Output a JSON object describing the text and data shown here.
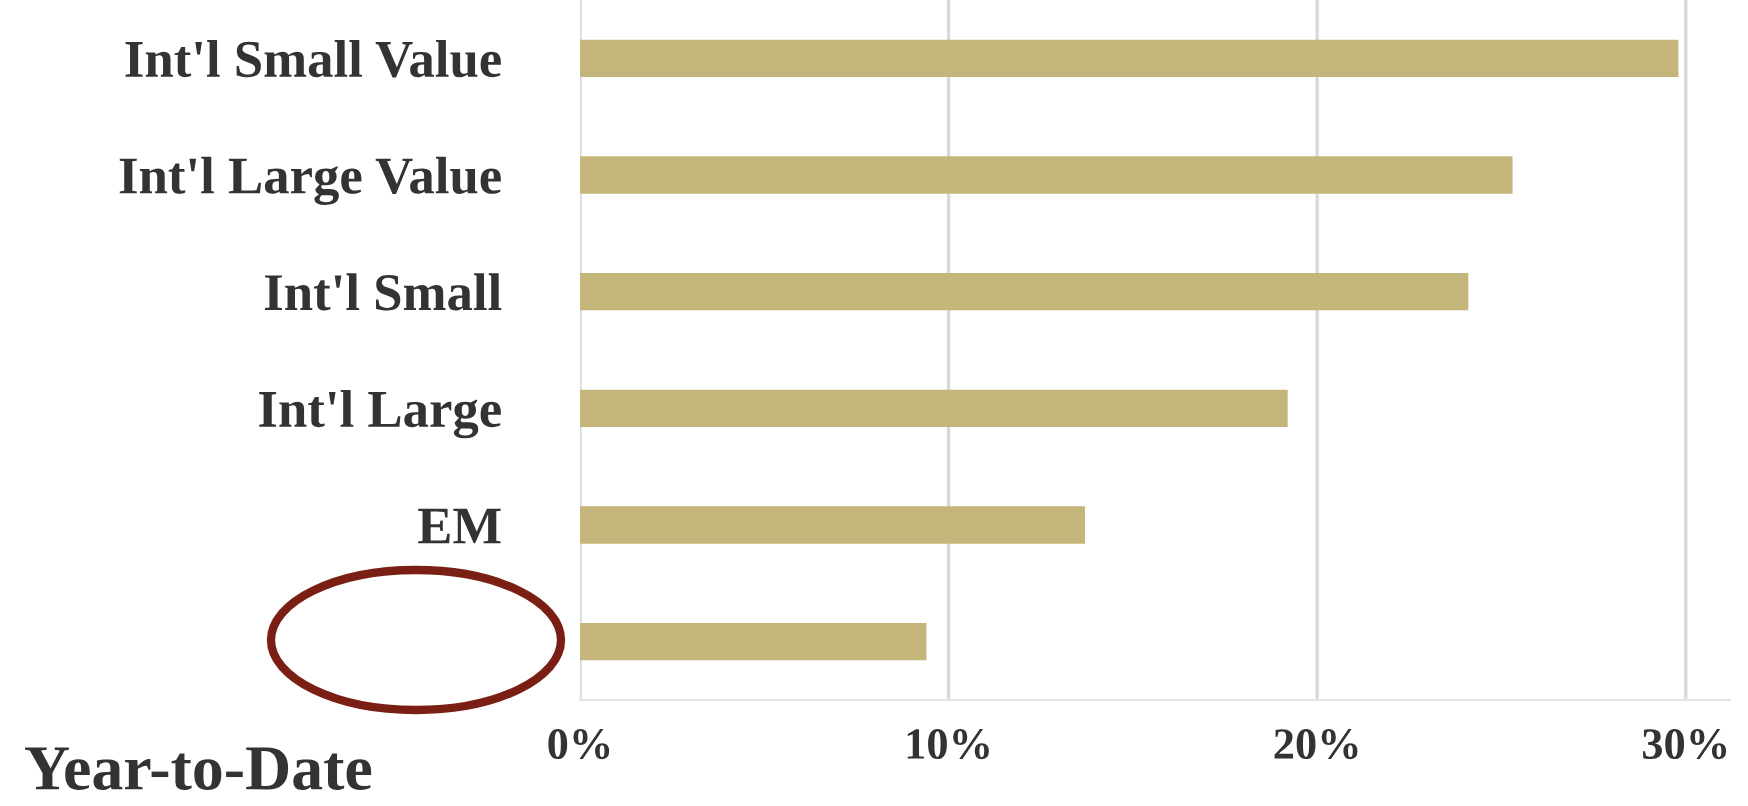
{
  "chart_data": {
    "type": "bar",
    "orientation": "horizontal",
    "categories": [
      "Int'l Small Value",
      "Int'l Large Value",
      "Int'l Small",
      "Int'l Large",
      "EM",
      null
    ],
    "values": [
      29.8,
      25.3,
      24.1,
      19.2,
      13.7,
      9.4
    ],
    "color": "#c4b67a",
    "xlim": [
      0,
      31.2
    ],
    "xticks": [
      {
        "value": 0,
        "label": "0%"
      },
      {
        "value": 10,
        "label": "10%"
      },
      {
        "value": 20,
        "label": "20%"
      },
      {
        "value": 30,
        "label": "30%"
      }
    ],
    "grid": "x",
    "legend": false,
    "annotations": [
      "Year-to-Date"
    ]
  }
}
